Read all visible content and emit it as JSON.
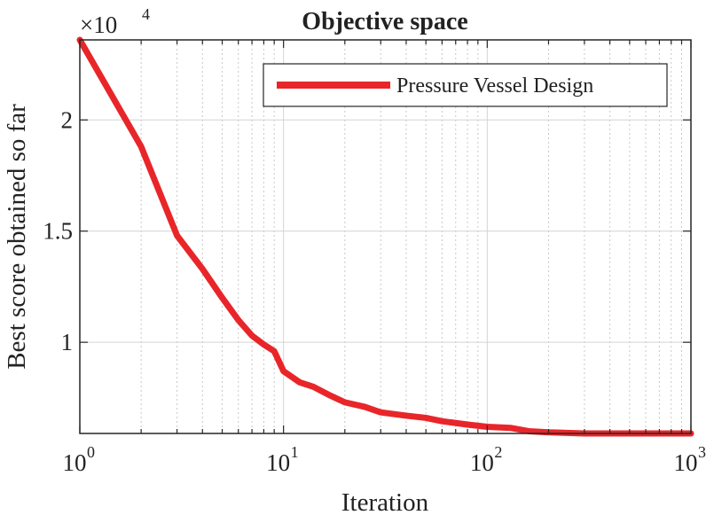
{
  "chart_data": {
    "type": "line",
    "title": "Objective space",
    "xlabel": "Iteration",
    "ylabel": "Best score obtained so far",
    "xscale": "log",
    "xlim": [
      1,
      1000
    ],
    "ylim": [
      5900,
      23600
    ],
    "y_multiplier": "×10",
    "y_multiplier_exp": "4",
    "grid": true,
    "legend_position": "top-right",
    "x_ticks": [
      {
        "value": 1,
        "base": "10",
        "exp": "0"
      },
      {
        "value": 10,
        "base": "10",
        "exp": "1"
      },
      {
        "value": 100,
        "base": "10",
        "exp": "2"
      },
      {
        "value": 1000,
        "base": "10",
        "exp": "3"
      }
    ],
    "y_ticks": [
      {
        "value": 10000,
        "label": "1"
      },
      {
        "value": 15000,
        "label": "1.5"
      },
      {
        "value": 20000,
        "label": "2"
      }
    ],
    "series": [
      {
        "name": "Pressure Vessel  Design",
        "color": "#e8262a",
        "x": [
          1,
          2,
          3,
          4,
          5,
          6,
          7,
          8,
          9,
          10,
          12,
          14,
          17,
          20,
          25,
          30,
          40,
          50,
          60,
          80,
          100,
          130,
          160,
          200,
          300,
          500,
          700,
          1000
        ],
        "y": [
          23600,
          18800,
          14800,
          13300,
          12000,
          11000,
          10300,
          9900,
          9600,
          8700,
          8200,
          8000,
          7600,
          7300,
          7100,
          6850,
          6700,
          6600,
          6450,
          6300,
          6200,
          6150,
          6000,
          5950,
          5900,
          5900,
          5900,
          5900
        ]
      }
    ]
  }
}
